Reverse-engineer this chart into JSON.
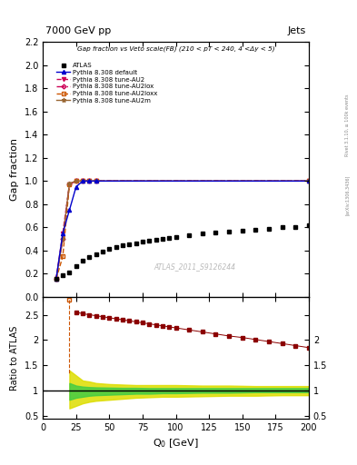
{
  "title_top": "7000 GeV pp",
  "title_top_right": "Jets",
  "plot_title": "Gap fraction vs Veto scale(FB) (210 < pT < 240, 4 <Δy < 5)",
  "xlabel": "Q$_0$ [GeV]",
  "ylabel_main": "Gap fraction",
  "ylabel_ratio": "Ratio to ATLAS",
  "watermark": "ATLAS_2011_S9126244",
  "right_label": "Rivet 3.1.10, ≥ 100k events",
  "right_label2": "[arXiv:1306.3436]",
  "xlim": [
    0,
    200
  ],
  "ylim_main": [
    0,
    2.2
  ],
  "ylim_ratio": [
    0.45,
    2.85
  ],
  "yticks_main": [
    0,
    0.2,
    0.4,
    0.6,
    0.8,
    1.0,
    1.2,
    1.4,
    1.6,
    1.8,
    2.0,
    2.2
  ],
  "yticks_ratio": [
    0.5,
    1.0,
    1.5,
    2.0,
    2.5
  ],
  "atlas_data_x": [
    10,
    15,
    20,
    25,
    30,
    35,
    40,
    45,
    50,
    55,
    60,
    65,
    70,
    75,
    80,
    85,
    90,
    95,
    100,
    110,
    120,
    130,
    140,
    150,
    160,
    170,
    180,
    190,
    200
  ],
  "atlas_data_y": [
    0.155,
    0.185,
    0.215,
    0.265,
    0.31,
    0.345,
    0.37,
    0.395,
    0.415,
    0.43,
    0.445,
    0.455,
    0.465,
    0.475,
    0.485,
    0.495,
    0.505,
    0.51,
    0.515,
    0.53,
    0.545,
    0.555,
    0.565,
    0.575,
    0.58,
    0.59,
    0.6,
    0.605,
    0.615
  ],
  "pythia_default_x": [
    10,
    15,
    20,
    25,
    30,
    35,
    40,
    200
  ],
  "pythia_default_y": [
    0.155,
    0.55,
    0.75,
    0.95,
    1.0,
    1.0,
    1.0,
    1.0
  ],
  "pythia_au2_x": [
    10,
    15,
    20,
    25,
    30,
    35,
    40,
    200
  ],
  "pythia_au2_y": [
    0.155,
    0.55,
    0.97,
    1.0,
    1.0,
    1.0,
    1.0,
    1.0
  ],
  "pythia_au2lox_x": [
    10,
    15,
    20,
    25,
    30,
    35,
    40,
    200
  ],
  "pythia_au2lox_y": [
    0.155,
    0.5,
    0.97,
    1.0,
    1.0,
    1.0,
    1.0,
    1.0
  ],
  "pythia_au2loxx_x": [
    10,
    15,
    20,
    25,
    30,
    35,
    40,
    200
  ],
  "pythia_au2loxx_y": [
    0.155,
    0.35,
    0.97,
    1.0,
    1.0,
    1.0,
    1.0,
    1.0
  ],
  "pythia_au2m_x": [
    10,
    15,
    20,
    25,
    30,
    35,
    40,
    200
  ],
  "pythia_au2m_y": [
    0.155,
    0.5,
    0.98,
    1.0,
    1.0,
    1.0,
    1.0,
    1.0
  ],
  "ratio_mc_x": [
    25,
    30,
    35,
    40,
    45,
    50,
    55,
    60,
    65,
    70,
    75,
    80,
    85,
    90,
    95,
    100,
    110,
    120,
    130,
    140,
    150,
    160,
    170,
    180,
    190,
    200
  ],
  "ratio_mc_y": [
    2.55,
    2.52,
    2.5,
    2.48,
    2.46,
    2.44,
    2.42,
    2.4,
    2.38,
    2.36,
    2.34,
    2.32,
    2.3,
    2.28,
    2.26,
    2.24,
    2.2,
    2.16,
    2.12,
    2.08,
    2.05,
    2.01,
    1.97,
    1.93,
    1.89,
    1.85
  ],
  "ratio_outlier_x": 20,
  "ratio_outlier_y": 2.8,
  "band_green_x": [
    20,
    25,
    30,
    35,
    40,
    50,
    60,
    70,
    80,
    90,
    100,
    120,
    140,
    160,
    180,
    200
  ],
  "band_green_upper": [
    1.15,
    1.1,
    1.08,
    1.07,
    1.065,
    1.06,
    1.055,
    1.055,
    1.05,
    1.05,
    1.05,
    1.05,
    1.05,
    1.05,
    1.05,
    1.05
  ],
  "band_green_lower": [
    0.82,
    0.86,
    0.88,
    0.9,
    0.91,
    0.92,
    0.93,
    0.94,
    0.94,
    0.95,
    0.95,
    0.96,
    0.96,
    0.97,
    0.97,
    0.97
  ],
  "band_yellow_x": [
    20,
    25,
    30,
    35,
    40,
    50,
    60,
    70,
    80,
    90,
    100,
    120,
    140,
    160,
    180,
    200
  ],
  "band_yellow_upper": [
    1.4,
    1.3,
    1.2,
    1.18,
    1.15,
    1.13,
    1.12,
    1.11,
    1.11,
    1.11,
    1.11,
    1.1,
    1.1,
    1.09,
    1.09,
    1.09
  ],
  "band_yellow_lower": [
    0.65,
    0.7,
    0.75,
    0.78,
    0.8,
    0.82,
    0.84,
    0.86,
    0.87,
    0.88,
    0.88,
    0.89,
    0.9,
    0.9,
    0.91,
    0.91
  ],
  "color_atlas": "#000000",
  "color_default": "#0000cc",
  "color_au2": "#cc0055",
  "color_au2lox": "#cc0055",
  "color_au2loxx": "#cc5500",
  "color_au2m": "#996633",
  "color_band_green": "#44cc44",
  "color_band_yellow": "#dddd00",
  "color_ratio_markers": "#8b0000",
  "bg_color": "#ffffff"
}
